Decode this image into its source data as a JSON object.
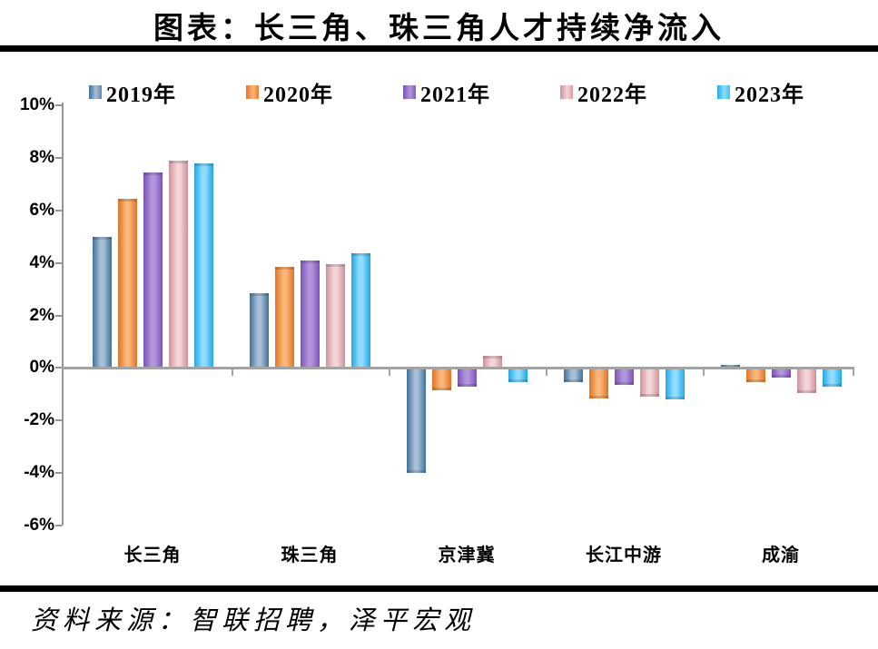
{
  "footer": {
    "source": "资料来源：智联招聘，泽平宏观"
  },
  "chart_data": {
    "type": "bar",
    "title": "图表：长三角、珠三角人才持续净流入",
    "categories": [
      "长三角",
      "珠三角",
      "京津冀",
      "长江中游",
      "成渝"
    ],
    "series": [
      {
        "name": "2019年",
        "color": "#41719C",
        "color_light": "#A8BFD7",
        "legend_color": "#5B84B0",
        "values": [
          5.0,
          2.85,
          -4.0,
          -0.55,
          0.1
        ]
      },
      {
        "name": "2020年",
        "color": "#E07423",
        "color_light": "#FAB67A",
        "legend_color": "#EE7D31",
        "values": [
          6.45,
          3.85,
          -0.85,
          -1.15,
          -0.55
        ]
      },
      {
        "name": "2021年",
        "color": "#7A52B8",
        "color_light": "#B295DB",
        "legend_color": "#7D5EC2",
        "values": [
          7.45,
          4.1,
          -0.7,
          -0.65,
          -0.35
        ]
      },
      {
        "name": "2022年",
        "color": "#D0909A",
        "color_light": "#F3D5D8",
        "legend_color": "#DA9CA3",
        "values": [
          7.9,
          3.95,
          0.45,
          -1.1,
          -0.95
        ]
      },
      {
        "name": "2023年",
        "color": "#22A7E6",
        "color_light": "#8FDCFF",
        "legend_color": "#3EC1F4",
        "values": [
          7.8,
          4.35,
          -0.55,
          -1.2,
          -0.7
        ]
      }
    ],
    "ylim": [
      -6,
      10
    ],
    "ytick_step": 2,
    "ytick_labels": [
      "10%",
      "8%",
      "6%",
      "4%",
      "2%",
      "0%",
      "-2%",
      "-4%",
      "-6%"
    ],
    "xlabel": "",
    "ylabel": "",
    "legend_position": "top",
    "grid": false,
    "axis_color": "#a3a3a3",
    "unit": "%"
  }
}
